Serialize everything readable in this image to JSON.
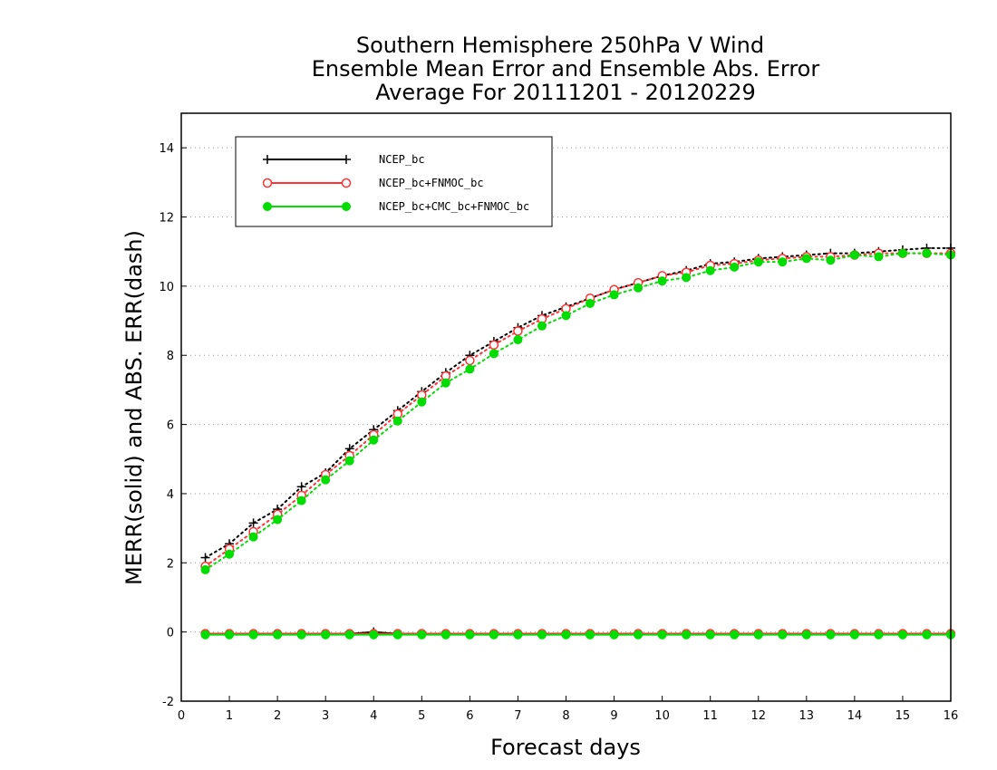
{
  "chart_data": {
    "type": "line",
    "title_lines": [
      "Southern Hemisphere 250hPa V Wind",
      "Ensemble Mean Error and Ensemble Abs. Error",
      "Average For 20111201 - 20120229"
    ],
    "xlabel": "Forecast days",
    "ylabel": "MERR(solid) and ABS. ERR(dash)",
    "xlim": [
      0,
      16
    ],
    "ylim": [
      -2,
      15
    ],
    "xticks": [
      "0",
      "1",
      "2",
      "3",
      "4",
      "5",
      "6",
      "7",
      "8",
      "9",
      "10",
      "11",
      "12",
      "13",
      "14",
      "15",
      "16"
    ],
    "yticks": [
      "-2",
      "0",
      "2",
      "4",
      "6",
      "8",
      "10",
      "12",
      "14"
    ],
    "grid": "horizontal dotted",
    "legend_position": "top-left",
    "x": [
      0.5,
      1,
      1.5,
      2,
      2.5,
      3,
      3.5,
      4,
      4.5,
      5,
      5.5,
      6,
      6.5,
      7,
      7.5,
      8,
      8.5,
      9,
      9.5,
      10,
      10.5,
      11,
      11.5,
      12,
      12.5,
      13,
      13.5,
      14,
      14.5,
      15,
      15.5,
      16
    ],
    "series": [
      {
        "name": "NCEP_bc",
        "color": "#000000",
        "marker": "plus",
        "abs_err": [
          2.15,
          2.55,
          3.15,
          3.55,
          4.2,
          4.6,
          5.3,
          5.85,
          6.4,
          6.95,
          7.5,
          8.0,
          8.4,
          8.8,
          9.15,
          9.4,
          9.65,
          9.9,
          10.1,
          10.3,
          10.45,
          10.65,
          10.7,
          10.8,
          10.85,
          10.9,
          10.95,
          10.95,
          11.0,
          11.05,
          11.1,
          11.1
        ],
        "mean_err": [
          -0.05,
          -0.05,
          -0.05,
          -0.05,
          -0.05,
          -0.05,
          -0.05,
          0.0,
          -0.05,
          -0.05,
          -0.05,
          -0.05,
          -0.05,
          -0.05,
          -0.05,
          -0.05,
          -0.05,
          -0.05,
          -0.05,
          -0.05,
          -0.05,
          -0.05,
          -0.05,
          -0.05,
          -0.05,
          -0.05,
          -0.05,
          -0.05,
          -0.05,
          -0.05,
          -0.05,
          -0.05
        ]
      },
      {
        "name": "NCEP_bc+FNMOC_bc",
        "color": "#ff3333",
        "marker": "open-circle",
        "abs_err": [
          1.9,
          2.4,
          2.9,
          3.4,
          3.95,
          4.55,
          5.1,
          5.7,
          6.3,
          6.85,
          7.4,
          7.85,
          8.3,
          8.7,
          9.05,
          9.35,
          9.65,
          9.9,
          10.1,
          10.3,
          10.4,
          10.6,
          10.65,
          10.75,
          10.8,
          10.85,
          10.85,
          10.9,
          10.95,
          10.95,
          10.95,
          10.95
        ],
        "mean_err": [
          -0.05,
          -0.05,
          -0.05,
          -0.05,
          -0.05,
          -0.05,
          -0.05,
          -0.05,
          -0.05,
          -0.05,
          -0.05,
          -0.05,
          -0.05,
          -0.05,
          -0.05,
          -0.05,
          -0.05,
          -0.05,
          -0.05,
          -0.05,
          -0.05,
          -0.05,
          -0.05,
          -0.05,
          -0.05,
          -0.05,
          -0.05,
          -0.05,
          -0.05,
          -0.05,
          -0.05,
          -0.05
        ]
      },
      {
        "name": "NCEP_bc+CMC_bc+FNMOC_bc",
        "color": "#00dd00",
        "marker": "filled-circle",
        "abs_err": [
          1.8,
          2.25,
          2.75,
          3.25,
          3.8,
          4.4,
          4.95,
          5.55,
          6.1,
          6.65,
          7.2,
          7.6,
          8.05,
          8.45,
          8.85,
          9.15,
          9.5,
          9.75,
          9.95,
          10.15,
          10.25,
          10.45,
          10.55,
          10.7,
          10.7,
          10.8,
          10.75,
          10.9,
          10.85,
          10.95,
          10.95,
          10.9
        ],
        "mean_err": [
          -0.08,
          -0.08,
          -0.08,
          -0.08,
          -0.08,
          -0.08,
          -0.08,
          -0.08,
          -0.08,
          -0.08,
          -0.08,
          -0.08,
          -0.08,
          -0.08,
          -0.08,
          -0.08,
          -0.08,
          -0.08,
          -0.08,
          -0.08,
          -0.08,
          -0.08,
          -0.08,
          -0.08,
          -0.08,
          -0.08,
          -0.08,
          -0.08,
          -0.08,
          -0.08,
          -0.08,
          -0.08
        ]
      }
    ]
  }
}
